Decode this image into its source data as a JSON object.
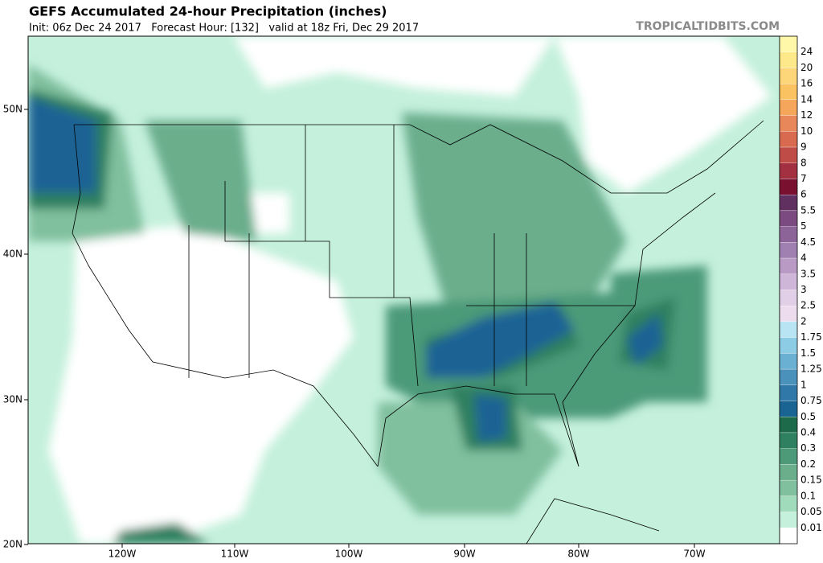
{
  "header": {
    "title": "GEFS Accumulated 24-hour Precipitation (inches)",
    "subtitle": "Init: 06z Dec 24 2017   Forecast Hour: [132]   valid at 18z Fri, Dec 29 2017",
    "brand": "TROPICALTIDBITS.COM"
  },
  "axes": {
    "longitudes": [
      "120W",
      "110W",
      "100W",
      "90W",
      "80W",
      "70W"
    ],
    "latitudes": [
      "50N",
      "40N",
      "30N",
      "20N"
    ]
  },
  "colorbar": {
    "labels": [
      "24",
      "20",
      "16",
      "14",
      "12",
      "10",
      "9",
      "8",
      "7",
      "6",
      "5.5",
      "5",
      "4.5",
      "4",
      "3.5",
      "3",
      "2.5",
      "2",
      "1.75",
      "1.5",
      "1.25",
      "1",
      "0.75",
      "0.5",
      "0.4",
      "0.3",
      "0.2",
      "0.15",
      "0.1",
      "0.05",
      "0.01"
    ],
    "colors": [
      "#fff8a8",
      "#fde88a",
      "#fdd67a",
      "#fbc262",
      "#f5a65a",
      "#e8885a",
      "#d86a50",
      "#c04c48",
      "#a23040",
      "#7a1030",
      "#603060",
      "#7a4a80",
      "#8c6498",
      "#a080b0",
      "#b89ac4",
      "#cdb6d8",
      "#e0cfe6",
      "#ecdcee",
      "#b8e4f4",
      "#8ccce4",
      "#6ab0d2",
      "#4a92bc",
      "#3078a8",
      "#1a6494",
      "#1c6a4a",
      "#2e8060",
      "#4c9a78",
      "#6aae8c",
      "#80c09e",
      "#a0dcbc",
      "#c4f0dc",
      "#ffffff"
    ]
  }
}
